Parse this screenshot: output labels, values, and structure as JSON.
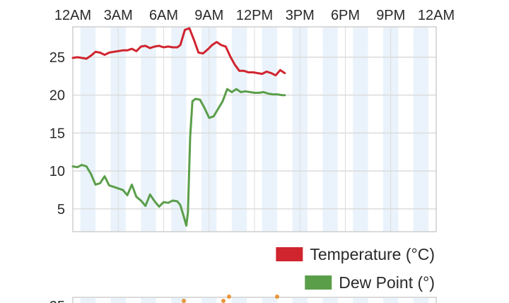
{
  "colors": {
    "temperature": "#d0252f",
    "dew_point": "#5a9e4a",
    "band": "#eaf3fb",
    "grid": "#dcdcdc",
    "axis": "#cfcfcf",
    "next_chart_dots": "#e9963a"
  },
  "chart_data": {
    "type": "line",
    "x_tick_labels": [
      "12AM",
      "3AM",
      "6AM",
      "9AM",
      "12PM",
      "3PM",
      "6PM",
      "9PM",
      "12AM"
    ],
    "xlim_hours": [
      0,
      24
    ],
    "ylim": [
      2,
      29
    ],
    "y_ticks": [
      5,
      10,
      15,
      20,
      25
    ],
    "grid": true,
    "legend_position": "bottom-right",
    "series": [
      {
        "name": "Temperature (°C)",
        "color": "#d0252f",
        "x_hours": [
          0,
          0.3,
          0.6,
          0.9,
          1.2,
          1.5,
          1.8,
          2.1,
          2.4,
          2.7,
          3.0,
          3.3,
          3.6,
          3.9,
          4.2,
          4.5,
          4.8,
          5.1,
          5.4,
          5.7,
          6.0,
          6.3,
          6.6,
          6.9,
          7.1,
          7.4,
          7.7,
          8.0,
          8.3,
          8.6,
          8.9,
          9.2,
          9.5,
          9.8,
          10.1,
          10.4,
          10.7,
          11.0,
          11.3,
          11.6,
          11.9,
          12.2,
          12.5,
          12.8,
          13.1,
          13.4,
          13.7,
          14.0
        ],
        "values": [
          24.9,
          25.0,
          24.9,
          24.8,
          25.2,
          25.7,
          25.6,
          25.3,
          25.6,
          25.7,
          25.8,
          25.9,
          25.9,
          26.1,
          25.8,
          26.4,
          26.5,
          26.2,
          26.4,
          26.5,
          26.3,
          26.4,
          26.3,
          26.3,
          26.6,
          28.6,
          28.8,
          27.3,
          25.6,
          25.5,
          26.0,
          26.6,
          27.0,
          26.6,
          26.4,
          25.1,
          24.0,
          23.2,
          23.2,
          23.0,
          23.0,
          22.9,
          22.8,
          23.1,
          22.9,
          22.6,
          23.3,
          22.9
        ]
      },
      {
        "name": "Dew Point (°)",
        "color": "#5a9e4a",
        "x_hours": [
          0,
          0.3,
          0.6,
          0.9,
          1.2,
          1.5,
          1.8,
          2.1,
          2.4,
          2.7,
          3.0,
          3.3,
          3.6,
          3.9,
          4.2,
          4.5,
          4.8,
          5.1,
          5.4,
          5.7,
          6.0,
          6.3,
          6.6,
          6.9,
          7.1,
          7.3,
          7.5,
          7.6,
          7.75,
          7.9,
          8.1,
          8.4,
          8.7,
          9.0,
          9.3,
          9.6,
          9.9,
          10.2,
          10.5,
          10.8,
          11.1,
          11.4,
          11.7,
          12.0,
          12.3,
          12.6,
          12.9,
          13.2,
          13.5,
          13.8,
          14.0
        ],
        "values": [
          10.6,
          10.5,
          10.8,
          10.6,
          9.6,
          8.2,
          8.4,
          9.3,
          8.1,
          7.9,
          7.7,
          7.5,
          6.8,
          8.2,
          6.6,
          6.1,
          5.4,
          6.9,
          6.0,
          5.3,
          5.9,
          5.8,
          6.1,
          6.0,
          5.5,
          4.2,
          2.8,
          4.5,
          14.5,
          19.2,
          19.5,
          19.4,
          18.3,
          17.0,
          17.2,
          18.2,
          19.2,
          20.8,
          20.4,
          20.8,
          20.4,
          20.5,
          20.4,
          20.3,
          20.3,
          20.4,
          20.2,
          20.1,
          20.1,
          20.0,
          20.0
        ]
      }
    ]
  },
  "next_chart": {
    "partial_tick_label": "25"
  }
}
